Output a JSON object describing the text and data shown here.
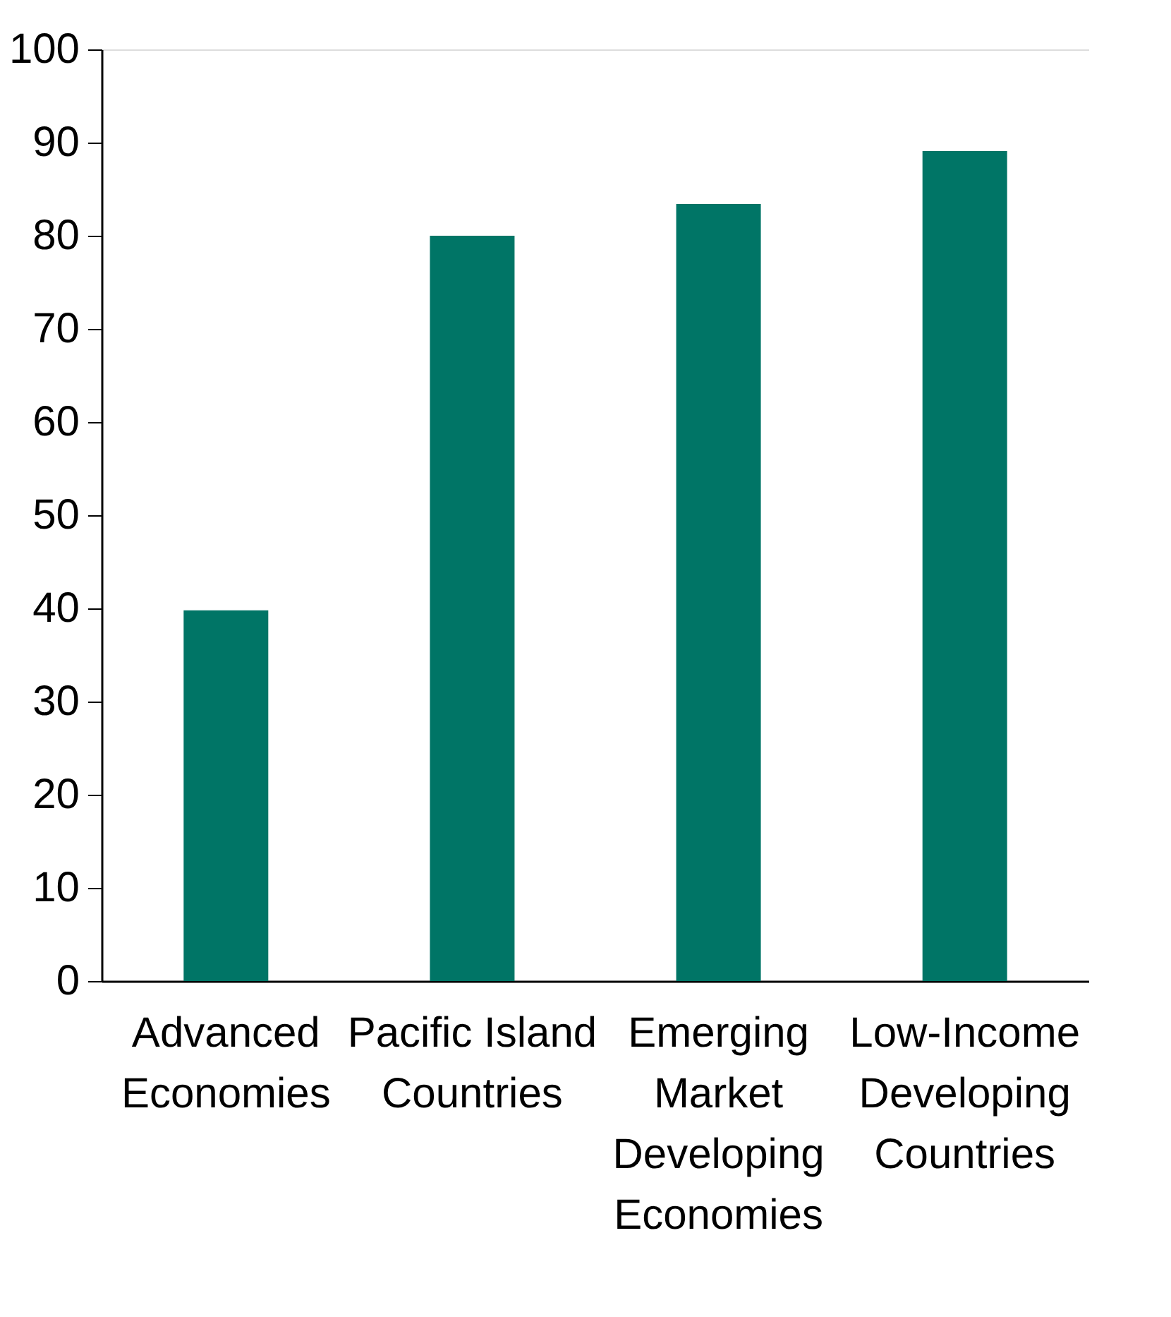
{
  "chart_data": {
    "type": "bar",
    "categories": [
      "Advanced Economies",
      "Pacific Island Countries",
      "Emerging Market Developing Economies",
      "Low-Income Developing Countries"
    ],
    "values": [
      39.8,
      80.0,
      83.4,
      89.1
    ],
    "color": "#007566",
    "ylim": [
      0,
      100
    ],
    "yticks": [
      0,
      10,
      20,
      30,
      40,
      50,
      60,
      70,
      80,
      90,
      100
    ],
    "grid": false
  }
}
